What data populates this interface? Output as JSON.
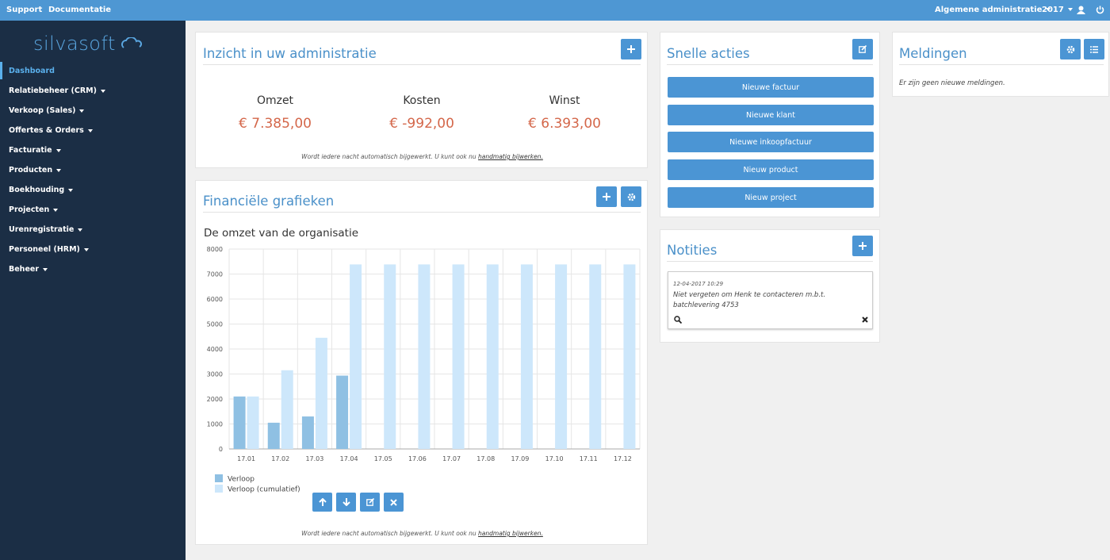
{
  "topbar": {
    "links": [
      "Support",
      "Documentatie"
    ],
    "admin": "Algemene administratie",
    "year": "2017"
  },
  "sidebar": {
    "logo": "silvasoft",
    "menu": [
      "Dashboard",
      "Relatiebeheer (CRM)",
      "Verkoop (Sales)",
      "Offertes & Orders",
      "Facturatie",
      "Producten",
      "Boekhouding",
      "Projecten",
      "Urenregistratie",
      "Personeel (HRM)",
      "Beheer"
    ]
  },
  "insight": {
    "title": "Inzicht in uw administratie",
    "stats": [
      {
        "label": "Omzet",
        "value": "€ 7.385,00"
      },
      {
        "label": "Kosten",
        "value": "€ -992,00"
      },
      {
        "label": "Winst",
        "value": "€ 6.393,00"
      }
    ],
    "footer_text": "Wordt iedere nacht automatisch bijgewerkt. U kunt ook nu",
    "footer_link": "handmatig bijwerken."
  },
  "charts_panel": {
    "title": "Financiële grafieken",
    "footer_text": "Wordt iedere nacht automatisch bijgewerkt. U kunt ook nu",
    "footer_link": "handmatig bijwerken."
  },
  "chart_data": {
    "type": "bar",
    "title": "De omzet van de organisatie",
    "categories": [
      "17.01",
      "17.02",
      "17.03",
      "17.04",
      "17.05",
      "17.06",
      "17.07",
      "17.08",
      "17.09",
      "17.10",
      "17.11",
      "17.12"
    ],
    "series": [
      {
        "name": "Verloop",
        "color": "#8fc0e3",
        "values": [
          2100,
          1050,
          1300,
          2935,
          0,
          0,
          0,
          0,
          0,
          0,
          0,
          0
        ]
      },
      {
        "name": "Verloop (cumulatief)",
        "color": "#cde7fb",
        "values": [
          2100,
          3150,
          4450,
          7385,
          7385,
          7385,
          7385,
          7385,
          7385,
          7385,
          7385,
          7385
        ]
      }
    ],
    "ylim": [
      0,
      8000
    ],
    "yticks": [
      0,
      1000,
      2000,
      3000,
      4000,
      5000,
      6000,
      7000,
      8000
    ],
    "grid": true
  },
  "quick_actions": {
    "title": "Snelle acties",
    "buttons": [
      "Nieuwe factuur",
      "Nieuwe klant",
      "Nieuwe inkoopfactuur",
      "Nieuw product",
      "Nieuw project"
    ]
  },
  "notes": {
    "title": "Notities",
    "items": [
      {
        "date": "12-04-2017 10:29",
        "text": "Niet vergeten om Henk te contacteren m.b.t. batchlevering 4753"
      }
    ]
  },
  "notifications": {
    "title": "Meldingen",
    "empty": "Er zijn geen nieuwe meldingen."
  }
}
